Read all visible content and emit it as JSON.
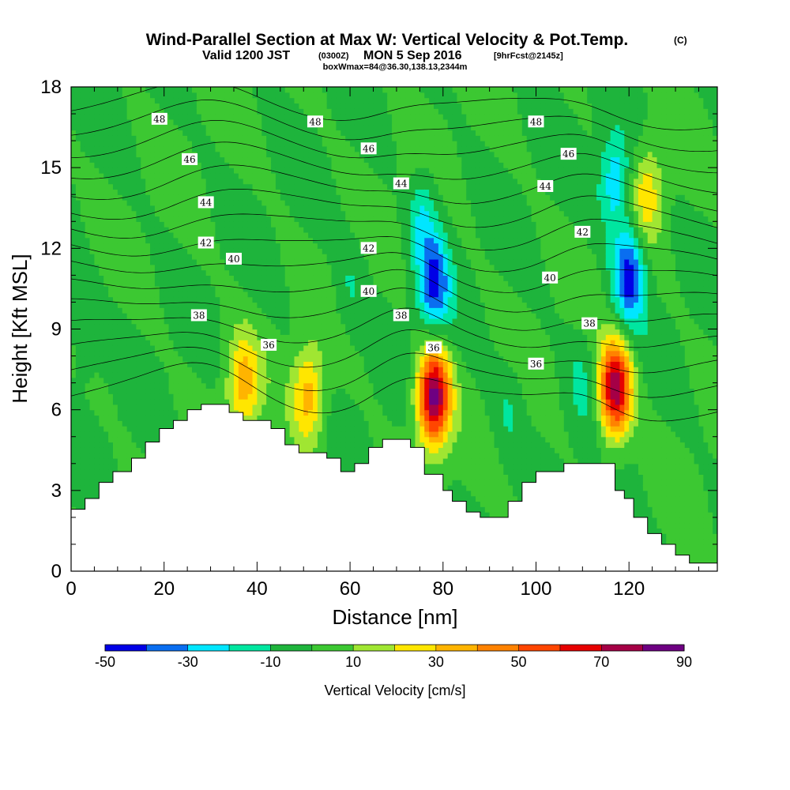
{
  "title": {
    "main": "Wind-Parallel Section at Max W: Vertical Velocity & Pot.Temp.",
    "copyright": "(C)",
    "valid_prefix": "Valid 1200 JST",
    "valid_utc": "(0300Z)",
    "valid_date": "MON 5 Sep 2016",
    "forecast": "[9hrFcst@2145z]",
    "boxwmax": "boxWmax=84@36.30,138.13,2344m"
  },
  "chart_data": {
    "type": "heatmap",
    "xlabel": "Distance [nm]",
    "ylabel": "Height [Kft MSL]",
    "xlim": [
      0,
      139
    ],
    "ylim": [
      0,
      18
    ],
    "x_ticks": [
      0,
      20,
      40,
      60,
      80,
      100,
      120
    ],
    "y_ticks": [
      0,
      3,
      6,
      9,
      12,
      15,
      18
    ],
    "colorbar": {
      "label": "Vertical Velocity [cm/s]",
      "boundaries": [
        -50,
        -40,
        -30,
        -20,
        -10,
        0,
        10,
        20,
        30,
        40,
        50,
        60,
        70,
        80,
        90
      ],
      "tick_labels": [
        "-50",
        "-30",
        "-10",
        "10",
        "30",
        "50",
        "70",
        "90"
      ],
      "colors": [
        "#0000e6",
        "#0a6ef0",
        "#00e6ff",
        "#00e6a0",
        "#1eb43c",
        "#3cc832",
        "#a0e632",
        "#ffe600",
        "#ffb400",
        "#ff8200",
        "#ff4600",
        "#e60000",
        "#a50046",
        "#6e0082"
      ]
    },
    "terrain": {
      "x": [
        0,
        3,
        6,
        9,
        13,
        16,
        19,
        22,
        25,
        28,
        31,
        34,
        37,
        40,
        43,
        46,
        49,
        52,
        55,
        58,
        61,
        64,
        67,
        70,
        73,
        76,
        78,
        80,
        82,
        85,
        88,
        91,
        94,
        97,
        100,
        103,
        106,
        109,
        112,
        115,
        117,
        119,
        121,
        124,
        127,
        130,
        133,
        136,
        139
      ],
      "height_kft": [
        2.3,
        2.7,
        3.3,
        3.7,
        4.2,
        4.8,
        5.3,
        5.6,
        6.0,
        6.2,
        6.2,
        5.9,
        5.6,
        5.6,
        5.3,
        4.7,
        4.4,
        4.4,
        4.2,
        3.7,
        4.0,
        4.6,
        4.9,
        4.9,
        4.6,
        3.6,
        3.6,
        3.0,
        2.6,
        2.2,
        2.0,
        2.0,
        2.6,
        3.3,
        3.7,
        3.7,
        4.0,
        4.0,
        4.0,
        4.0,
        3.0,
        2.7,
        2.0,
        1.4,
        1.0,
        0.6,
        0.3,
        0.3,
        0.4
      ]
    },
    "features": [
      {
        "x": 37,
        "z": 7.0,
        "w": 35
      },
      {
        "x": 51,
        "z": 6.5,
        "w": 35
      },
      {
        "x": 78,
        "z": 6.5,
        "w": 84
      },
      {
        "x": 117,
        "z": 6.8,
        "w": 80
      },
      {
        "x": 78,
        "z": 10.7,
        "w": -40
      },
      {
        "x": 120,
        "z": 11.0,
        "w": -45
      },
      {
        "x": 75,
        "z": 13.5,
        "w": -30
      },
      {
        "x": 117,
        "z": 14.5,
        "w": -30
      },
      {
        "x": 74,
        "z": 14.0,
        "w": 15
      },
      {
        "x": 124,
        "z": 14.0,
        "w": 25
      },
      {
        "x": 94,
        "z": 6.0,
        "w": -10
      },
      {
        "x": 110,
        "z": 7.0,
        "w": -10
      },
      {
        "x": 3,
        "z": 9.0,
        "w": -12
      },
      {
        "x": 60,
        "z": 10.5,
        "w": -10
      }
    ],
    "isentropes_K": [
      35,
      36,
      37,
      38,
      39,
      40,
      41,
      42,
      43,
      44,
      45,
      46,
      47,
      48,
      49
    ],
    "isentrope_labels": [
      {
        "value": "48",
        "x": 19,
        "z": 16.8
      },
      {
        "value": "46",
        "x": 25.5,
        "z": 15.3
      },
      {
        "value": "44",
        "x": 29,
        "z": 13.7
      },
      {
        "value": "42",
        "x": 29,
        "z": 12.2
      },
      {
        "value": "40",
        "x": 35,
        "z": 11.6
      },
      {
        "value": "38",
        "x": 27.5,
        "z": 9.5
      },
      {
        "value": "36",
        "x": 42.5,
        "z": 8.4
      },
      {
        "value": "48",
        "x": 52.5,
        "z": 16.7
      },
      {
        "value": "46",
        "x": 64,
        "z": 15.7
      },
      {
        "value": "44",
        "x": 71,
        "z": 14.4
      },
      {
        "value": "42",
        "x": 64,
        "z": 12.0
      },
      {
        "value": "40",
        "x": 64,
        "z": 10.4
      },
      {
        "value": "38",
        "x": 71,
        "z": 9.5
      },
      {
        "value": "36",
        "x": 78,
        "z": 8.3
      },
      {
        "value": "48",
        "x": 100,
        "z": 16.7
      },
      {
        "value": "46",
        "x": 107,
        "z": 15.5
      },
      {
        "value": "44",
        "x": 102,
        "z": 14.3
      },
      {
        "value": "42",
        "x": 110,
        "z": 12.6
      },
      {
        "value": "40",
        "x": 103,
        "z": 10.9
      },
      {
        "value": "36",
        "x": 100,
        "z": 7.7
      },
      {
        "value": "38",
        "x": 111.5,
        "z": 9.2
      }
    ]
  }
}
